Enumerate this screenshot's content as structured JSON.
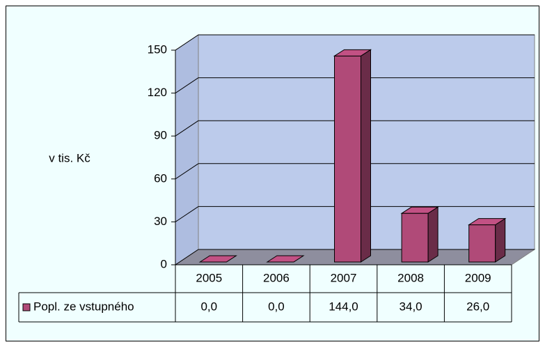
{
  "chart_data": {
    "type": "bar3d",
    "y_axis_label": "v tis. Kč",
    "categories": [
      "2005",
      "2006",
      "2007",
      "2008",
      "2009"
    ],
    "series": [
      {
        "name": "Popl. ze vstupného",
        "color": "#b04a78",
        "values": [
          0,
          0,
          144,
          34,
          26
        ],
        "value_labels": [
          "0,0",
          "0,0",
          "144,0",
          "34,0",
          "26,0"
        ]
      }
    ],
    "ylim": [
      0,
      150
    ],
    "yticks": [
      0,
      30,
      60,
      90,
      120,
      150
    ],
    "grid": true,
    "data_table": true
  }
}
